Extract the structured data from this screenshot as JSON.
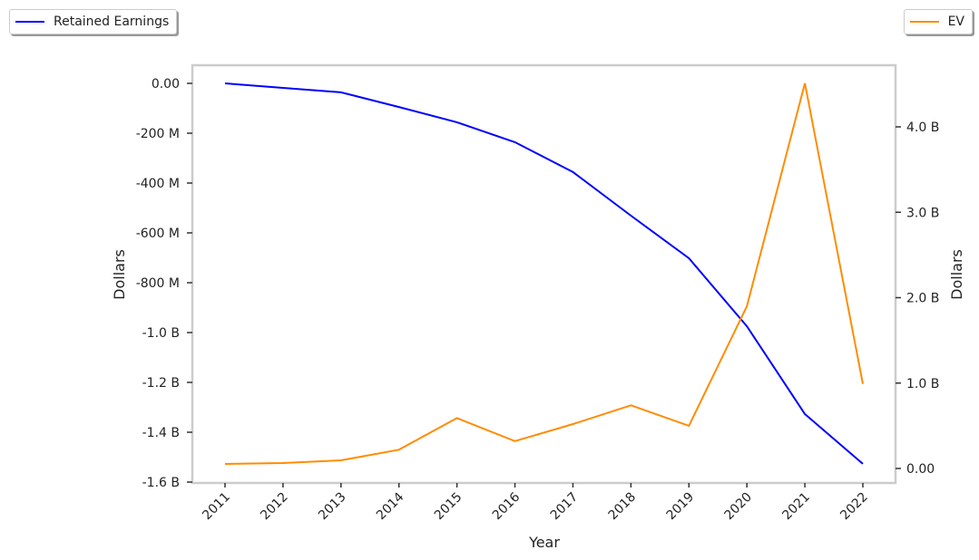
{
  "chart_data": {
    "type": "line",
    "xlabel": "Year",
    "ylabel_left": "Dollars",
    "ylabel_right": "Dollars",
    "categories": [
      "2011",
      "2012",
      "2013",
      "2014",
      "2015",
      "2016",
      "2017",
      "2018",
      "2019",
      "2020",
      "2021",
      "2022"
    ],
    "series": [
      {
        "name": "Retained Earnings",
        "axis": "left",
        "color": "#0000ff",
        "unit": "USD",
        "values": [
          0,
          -18000000,
          -36000000,
          -95000000,
          -156000000,
          -236000000,
          -356000000,
          -531000000,
          -702000000,
          -975000000,
          -1327000000,
          -1527000000
        ]
      },
      {
        "name": "EV",
        "axis": "right",
        "color": "#ff8c00",
        "unit": "USD",
        "values": [
          53000000,
          64000000,
          95000000,
          220000000,
          590000000,
          320000000,
          520000000,
          740000000,
          500000000,
          1900000000,
          4510000000,
          990000000
        ]
      }
    ],
    "left_axis": {
      "ylim": [
        -1600000000,
        0
      ],
      "ticks": [
        0,
        -200000000,
        -400000000,
        -600000000,
        -800000000,
        -1000000000,
        -1200000000,
        -1400000000,
        -1600000000
      ],
      "tick_labels": [
        "0.00",
        "-200 M",
        "-400 M",
        "-600 M",
        "-800 M",
        "-1.0 B",
        "-1.2 B",
        "-1.4 B",
        "-1.6 B"
      ]
    },
    "right_axis": {
      "ylim": [
        0,
        4000000000
      ],
      "ticks": [
        0,
        1000000000,
        2000000000,
        3000000000,
        4000000000
      ],
      "tick_labels": [
        "0.00",
        "1.0 B",
        "2.0 B",
        "3.0 B",
        "4.0 B"
      ]
    },
    "legend_placement": [
      "top-left",
      "top-right"
    ],
    "grid": false
  }
}
